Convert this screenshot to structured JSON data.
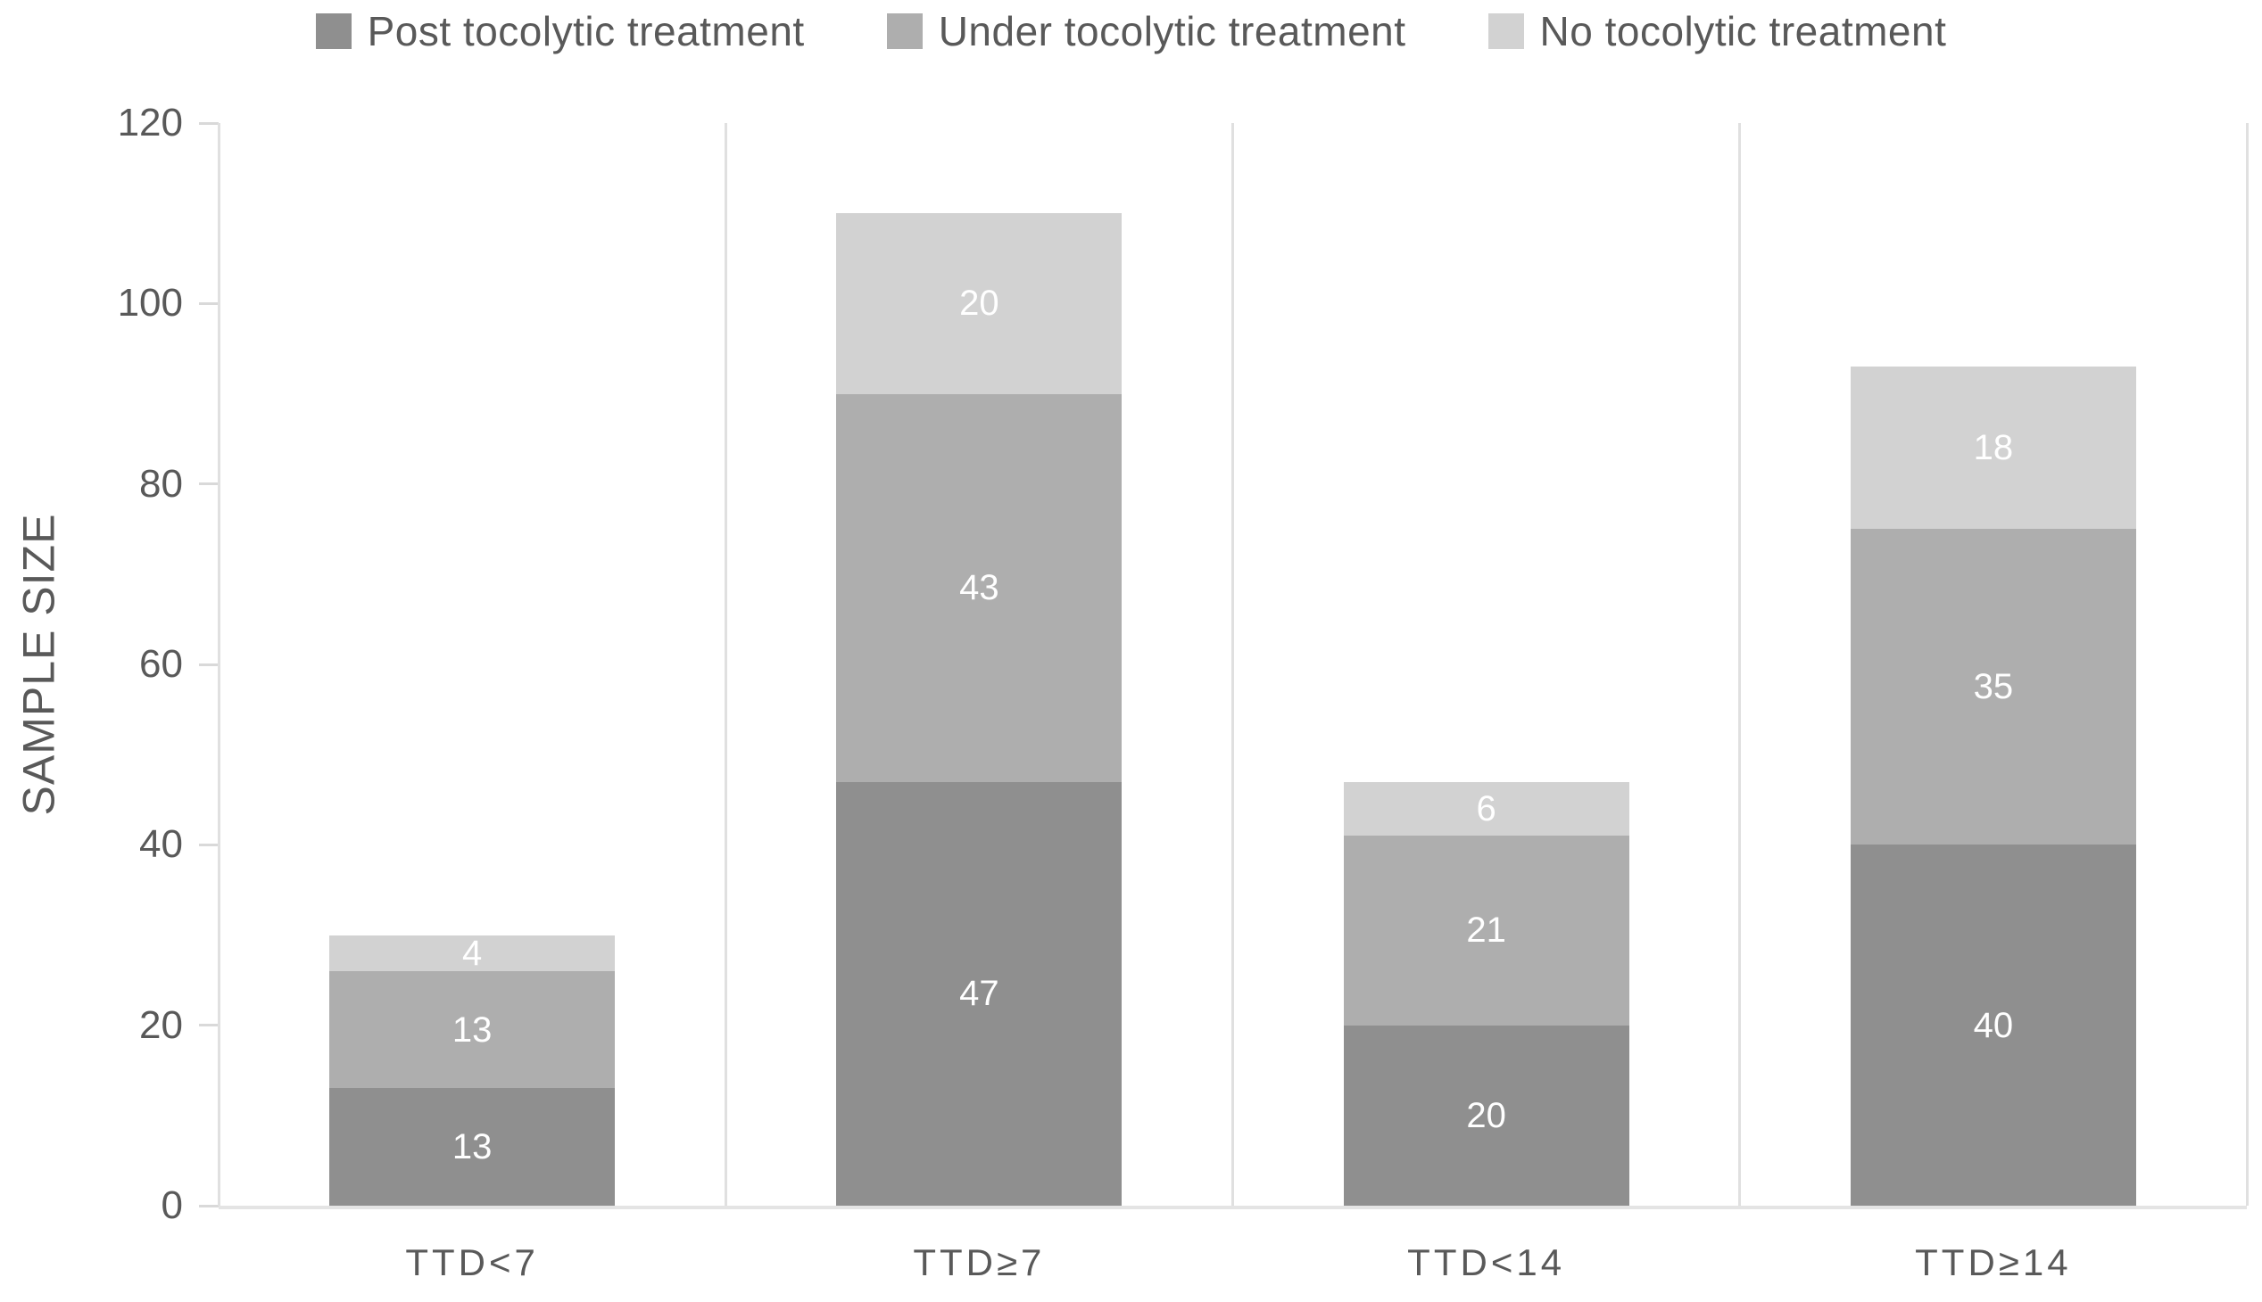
{
  "chart_data": {
    "type": "bar",
    "stacked": true,
    "title": "",
    "xlabel": "",
    "ylabel": "SAMPLE SIZE",
    "ylim": [
      0,
      120
    ],
    "yticks": [
      0,
      20,
      40,
      60,
      80,
      100,
      120
    ],
    "categories": [
      "TTD<7",
      "TTD≥7",
      "TTD<14",
      "TTD≥14"
    ],
    "series": [
      {
        "name": "Post tocolytic treatment",
        "color": "#8f8f8f",
        "values": [
          13,
          47,
          20,
          40
        ]
      },
      {
        "name": "Under tocolytic treatment",
        "color": "#aeaeae",
        "values": [
          13,
          43,
          21,
          35
        ]
      },
      {
        "name": "No tocolytic treatment",
        "color": "#d2d2d2",
        "values": [
          4,
          20,
          6,
          18
        ]
      }
    ],
    "totals": [
      30,
      110,
      47,
      93
    ],
    "legend_position": "top",
    "grid": "vertical panel separators only",
    "data_label_color": "#ffffff",
    "axis_text_color": "#595959",
    "axis_line_color": "#e0e0e0",
    "background_color": "#ffffff"
  }
}
